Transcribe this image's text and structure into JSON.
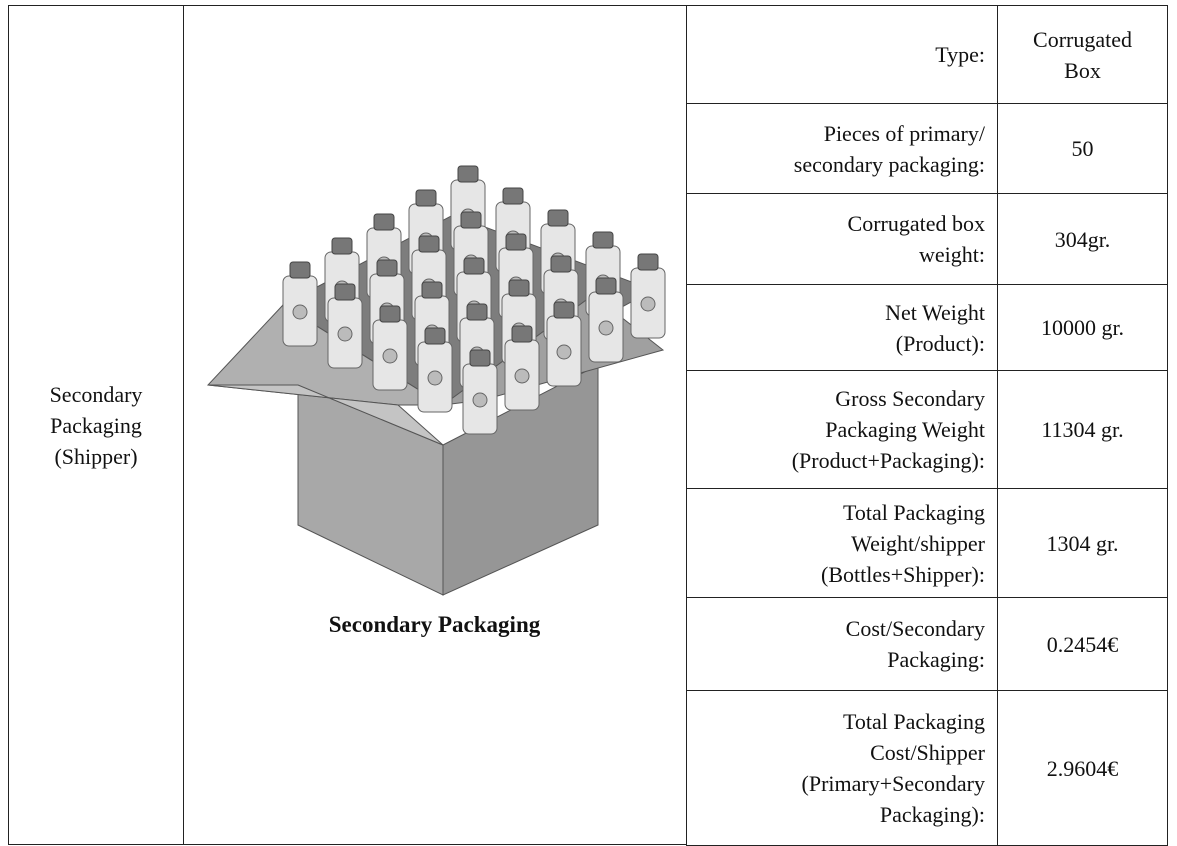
{
  "row_header": [
    "Secondary",
    "Packaging",
    "(Shipper)"
  ],
  "image_caption": "Secondary Packaging",
  "rows": [
    {
      "label": [
        "Type:"
      ],
      "value": [
        "Corrugated",
        "Box"
      ]
    },
    {
      "label": [
        "Pieces of primary/",
        "secondary packaging:"
      ],
      "value": [
        "50"
      ]
    },
    {
      "label": [
        "Corrugated box",
        "weight:"
      ],
      "value": [
        "304gr."
      ]
    },
    {
      "label": [
        "Net Weight",
        "(Product):"
      ],
      "value": [
        "10000 gr."
      ]
    },
    {
      "label": [
        "Gross Secondary",
        "Packaging Weight",
        "(Product+Packaging):"
      ],
      "value": [
        "11304 gr."
      ]
    },
    {
      "label": [
        "Total Packaging",
        "Weight/shipper",
        "(Bottles+Shipper):"
      ],
      "value": [
        "1304 gr."
      ]
    },
    {
      "label": [
        "Cost/Secondary",
        "Packaging:"
      ],
      "value": [
        "0.2454€"
      ]
    },
    {
      "label": [
        "Total Packaging",
        "Cost/Shipper",
        "(Primary+Secondary",
        "Packaging):"
      ],
      "value": [
        "2.9604€"
      ]
    }
  ]
}
